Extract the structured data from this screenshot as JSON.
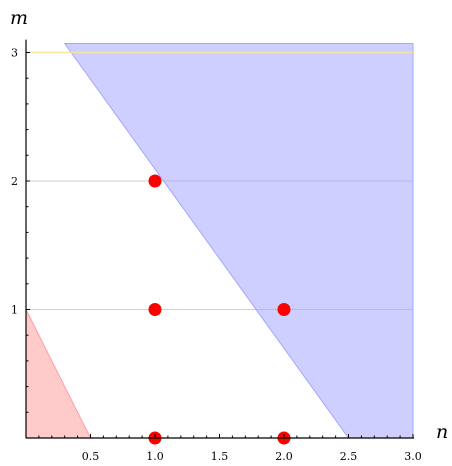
{
  "chart_data": {
    "type": "scatter",
    "title": "",
    "xlabel": "n",
    "ylabel": "m",
    "xlim": [
      0,
      3.0
    ],
    "ylim": [
      0,
      3.1
    ],
    "grid": "horizontal",
    "x_ticks": [
      0.5,
      1.0,
      1.5,
      2.0,
      2.5,
      3.0
    ],
    "x_tick_labels": [
      "0.5",
      "1.0",
      "1.5",
      "2.0",
      "2.5",
      "3.0"
    ],
    "y_ticks": [
      1,
      2,
      3
    ],
    "y_tick_labels": [
      "1",
      "2",
      "3"
    ],
    "points": [
      {
        "x": 1,
        "y": 0
      },
      {
        "x": 2,
        "y": 0
      },
      {
        "x": 1,
        "y": 1
      },
      {
        "x": 2,
        "y": 1
      },
      {
        "x": 1,
        "y": 2
      }
    ],
    "point_color": "#ff0000",
    "regions": [
      {
        "vertices": [
          [
            0,
            0
          ],
          [
            0,
            1
          ],
          [
            0.5,
            0
          ]
        ],
        "color": "#ff9f9f"
      },
      {
        "vertices": [
          [
            0.3,
            3.07
          ],
          [
            3.0,
            3.07
          ],
          [
            3.0,
            0
          ],
          [
            2.5,
            0
          ]
        ],
        "color": "#a6a6ff"
      }
    ],
    "reference_lines": [
      {
        "y": 3,
        "color": "#f2e6a6"
      }
    ]
  }
}
